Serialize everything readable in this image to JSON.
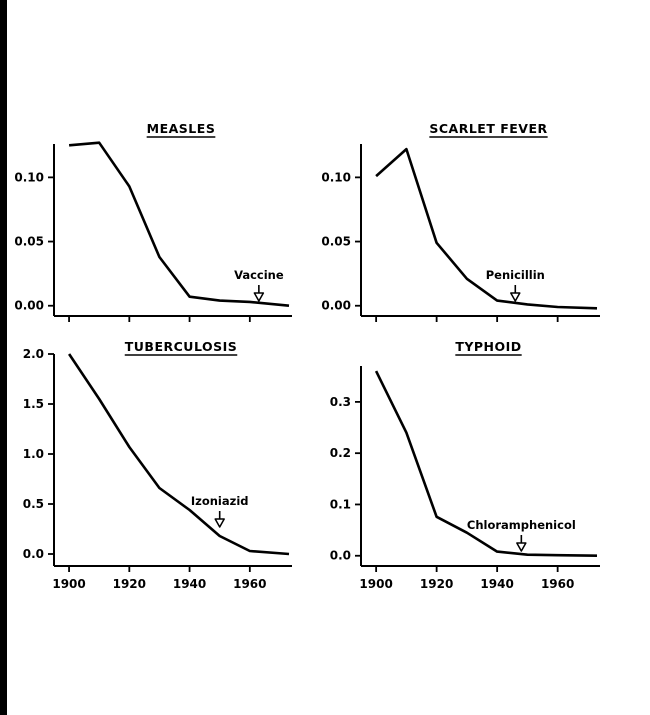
{
  "chart_data": [
    {
      "type": "line",
      "title": "MEASLES",
      "xlabel": "",
      "ylabel": "",
      "x": [
        1900,
        1910,
        1920,
        1930,
        1940,
        1950,
        1960,
        1973
      ],
      "series": [
        {
          "values": [
            0.125,
            0.127,
            0.093,
            0.038,
            0.007,
            0.004,
            0.003,
            0.0
          ]
        }
      ],
      "xlim": [
        1895,
        1974
      ],
      "ylim": [
        -0.008,
        0.126
      ],
      "xticks": [
        1900,
        1920,
        1940,
        1960
      ],
      "yticks": [
        0.0,
        0.05,
        0.1
      ],
      "ytick_labels": [
        "0.00",
        "0.05",
        "0.10"
      ],
      "show_xtick_labels": false,
      "annotation": {
        "text": "Vaccine",
        "x": 1963
      },
      "color": "#000000"
    },
    {
      "type": "line",
      "title": "SCARLET FEVER",
      "xlabel": "",
      "ylabel": "",
      "x": [
        1900,
        1910,
        1920,
        1930,
        1940,
        1950,
        1960,
        1973
      ],
      "series": [
        {
          "values": [
            0.101,
            0.122,
            0.049,
            0.021,
            0.004,
            0.001,
            -0.001,
            -0.002
          ]
        }
      ],
      "xlim": [
        1895,
        1974
      ],
      "ylim": [
        -0.008,
        0.126
      ],
      "xticks": [
        1900,
        1920,
        1940,
        1960
      ],
      "yticks": [
        0.0,
        0.05,
        0.1
      ],
      "ytick_labels": [
        "0.00",
        "0.05",
        "0.10"
      ],
      "show_xtick_labels": false,
      "annotation": {
        "text": "Penicillin",
        "x": 1946
      },
      "color": "#000000"
    },
    {
      "type": "line",
      "title": "TUBERCULOSIS",
      "xlabel": "",
      "ylabel": "",
      "x": [
        1900,
        1910,
        1920,
        1930,
        1940,
        1950,
        1960,
        1973
      ],
      "series": [
        {
          "values": [
            2.0,
            1.55,
            1.07,
            0.66,
            0.44,
            0.18,
            0.03,
            0.0
          ]
        }
      ],
      "xlim": [
        1895,
        1974
      ],
      "ylim": [
        -0.12,
        2.0
      ],
      "xticks": [
        1900,
        1920,
        1940,
        1960
      ],
      "yticks": [
        0.0,
        0.5,
        1.0,
        1.5,
        2.0
      ],
      "ytick_labels": [
        "0.0",
        "0.5",
        "1.0",
        "1.5",
        "2.0"
      ],
      "show_xtick_labels": true,
      "xtick_labels": [
        "1900",
        "1920",
        "1940",
        "1960"
      ],
      "annotation": {
        "text": "Izoniazid",
        "x": 1950
      },
      "color": "#000000"
    },
    {
      "type": "line",
      "title": "TYPHOID",
      "xlabel": "",
      "ylabel": "",
      "x": [
        1900,
        1910,
        1920,
        1930,
        1940,
        1950,
        1960,
        1973
      ],
      "series": [
        {
          "values": [
            0.36,
            0.24,
            0.076,
            0.045,
            0.008,
            0.002,
            0.001,
            0.0
          ]
        }
      ],
      "xlim": [
        1895,
        1974
      ],
      "ylim": [
        -0.02,
        0.37
      ],
      "xticks": [
        1900,
        1920,
        1940,
        1960
      ],
      "yticks": [
        0.0,
        0.1,
        0.2,
        0.3
      ],
      "ytick_labels": [
        "0.0",
        "0.1",
        "0.2",
        "0.3"
      ],
      "show_xtick_labels": true,
      "xtick_labels": [
        "1900",
        "1920",
        "1940",
        "1960"
      ],
      "annotation": {
        "text": "Chloramphenicol",
        "x": 1948
      },
      "color": "#000000"
    }
  ]
}
